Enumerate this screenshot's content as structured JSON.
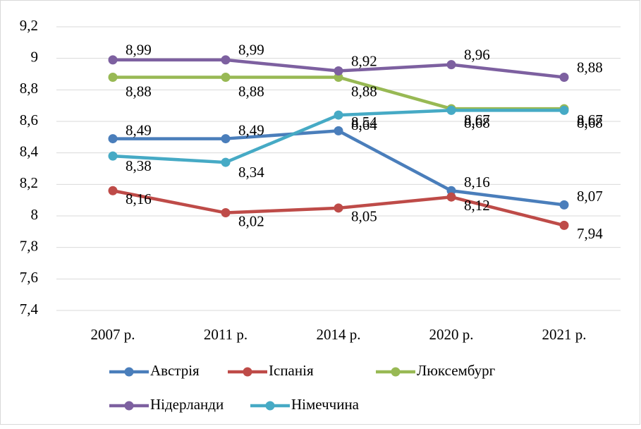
{
  "chart_data": {
    "type": "line",
    "categories": [
      "2007 р.",
      "2011 р.",
      "2014 р.",
      "2020 р.",
      "2021 р."
    ],
    "series": [
      {
        "name": "Австрія",
        "color": "#4a7ebb",
        "values": [
          8.49,
          8.49,
          8.54,
          8.16,
          8.07
        ],
        "value_labels": [
          "8,49",
          "8,49",
          "8,54",
          "8,16",
          "8,07"
        ]
      },
      {
        "name": "Іспанія",
        "color": "#be4b48",
        "values": [
          8.16,
          8.02,
          8.05,
          8.12,
          7.94
        ],
        "value_labels": [
          "8,16",
          "8,02",
          "8,05",
          "8,12",
          "7,94"
        ]
      },
      {
        "name": "Люксембург",
        "color": "#98b954",
        "values": [
          8.88,
          8.88,
          8.88,
          8.68,
          8.68
        ],
        "value_labels": [
          "8,88",
          "8,88",
          "8,88",
          "8,68",
          "8,68"
        ]
      },
      {
        "name": "Нідерланди",
        "color": "#7d60a0",
        "values": [
          8.99,
          8.99,
          8.92,
          8.96,
          8.88
        ],
        "value_labels": [
          "8,99",
          "8,99",
          "8,92",
          "8,96",
          "8,88"
        ]
      },
      {
        "name": "Німеччина",
        "color": "#46aac5",
        "values": [
          8.38,
          8.34,
          8.64,
          8.67,
          8.67
        ],
        "value_labels": [
          "8,38",
          "8,34",
          "8,64",
          "8,67",
          "8,67"
        ]
      }
    ],
    "ylim": [
      7.4,
      9.2
    ],
    "yticks": [
      {
        "value": 7.4,
        "label": "7,4"
      },
      {
        "value": 7.6,
        "label": "7,6"
      },
      {
        "value": 7.8,
        "label": "7,8"
      },
      8,
      {
        "value": 8.2,
        "label": "8,2"
      },
      {
        "value": 8.4,
        "label": "8,4"
      },
      {
        "value": 8.6,
        "label": "8,6"
      },
      {
        "value": 8.8,
        "label": "8,8"
      },
      9,
      {
        "value": 9.2,
        "label": "9,2"
      }
    ],
    "grid": true,
    "legend": "bottom"
  }
}
